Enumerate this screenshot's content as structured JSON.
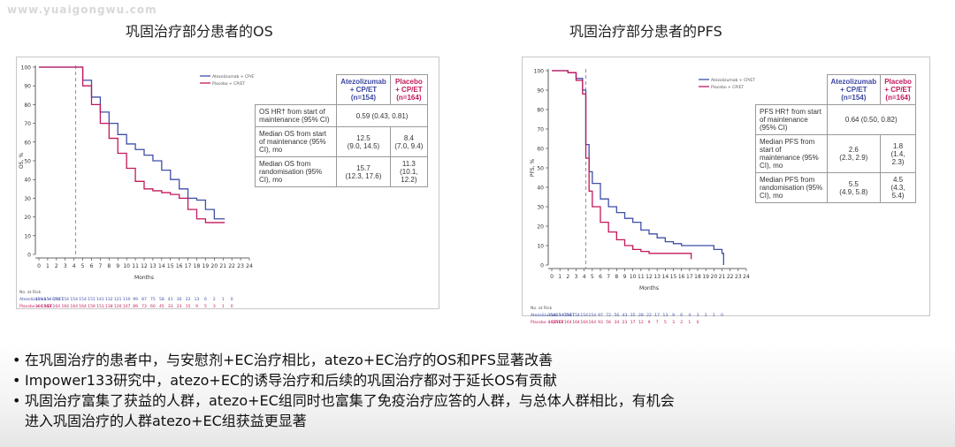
{
  "watermark": "www.yuaigongwu.com",
  "os_panel": {
    "title": "巩固治疗部分患者的OS",
    "table": {
      "col1": [
        "Atezolizumab",
        "+ CP/ET",
        "(n=154)"
      ],
      "col2": [
        "Placebo",
        "+ CP/ET",
        "(n=164)"
      ],
      "hr_label": "OS HR† from start of maintenance (95% CI)",
      "hr_value": "0.59 (0.43, 0.81)",
      "row2_label": "Median OS from start of maintenance (95% CI), mo",
      "row2_v1": [
        "12.5",
        "(9.0, 14.5)"
      ],
      "row2_v2": [
        "8.4",
        "(7.0, 9.4)"
      ],
      "row3_label": "Median OS from randomisation (95% CI), mo",
      "row3_v1": [
        "15.7",
        "(12.3, 17.6)"
      ],
      "row3_v2": [
        "11.3",
        "(10.1, 12.2)"
      ]
    }
  },
  "pfs_panel": {
    "title": "巩固治疗部分患者的PFS",
    "table": {
      "col1": [
        "Atezolizumab",
        "+ CP/ET",
        "(n=154)"
      ],
      "col2": [
        "Placebo",
        "+ CP/ET",
        "(n=164)"
      ],
      "hr_label": "PFS HR† from start of maintenance (95% CI)",
      "hr_value": "0.64 (0.50, 0.82)",
      "row2_label": "Median PFS from start of maintenance (95% CI), mo",
      "row2_v1": [
        "2.6",
        "(2.3, 2.9)"
      ],
      "row2_v2": [
        "1.8",
        "(1.4, 2.3)"
      ],
      "row3_label": "Median PFS from randomisation (95% CI), mo",
      "row3_v1": [
        "5.5",
        "(4.9, 5.8)"
      ],
      "row3_v2": [
        "4.5",
        "(4.3, 5.4)"
      ]
    }
  },
  "chart_data": [
    {
      "type": "line",
      "title": "",
      "xlabel": "Months",
      "ylabel": "OS, %",
      "xlim": [
        0,
        24
      ],
      "ylim": [
        0,
        100
      ],
      "xticks": [
        0,
        1,
        2,
        3,
        4,
        5,
        6,
        7,
        8,
        9,
        10,
        11,
        12,
        13,
        14,
        15,
        16,
        17,
        18,
        19,
        20,
        21,
        22,
        23,
        24
      ],
      "yticks": [
        0,
        10,
        20,
        30,
        40,
        50,
        60,
        70,
        80,
        90,
        100
      ],
      "ref_line_x": 4.2,
      "legend_position": "top-right",
      "series": [
        {
          "name": "Atezolizumab + CP/ET",
          "color": "#3f4fa8",
          "x": [
            0,
            4.2,
            5,
            6,
            7,
            8,
            9,
            10,
            11,
            12,
            13,
            14,
            15,
            16,
            17,
            18,
            19,
            20,
            21.2
          ],
          "y": [
            100,
            100,
            93,
            84,
            76,
            70,
            64,
            59,
            56,
            53,
            50,
            45,
            40,
            35,
            30,
            29,
            24,
            19,
            19
          ]
        },
        {
          "name": "Placebo + CP/ET",
          "color": "#c2185b",
          "x": [
            0,
            4.2,
            5,
            6,
            7,
            8,
            9,
            10,
            11,
            12,
            13,
            14,
            15,
            16,
            17,
            18,
            19,
            20,
            21.2
          ],
          "y": [
            100,
            100,
            90,
            80,
            70,
            62,
            54,
            46,
            39,
            35,
            34,
            33,
            32,
            30,
            24,
            19,
            17,
            17,
            17
          ]
        }
      ],
      "at_risk": {
        "label": "No. at Risk",
        "rows": [
          {
            "label": "Atezolizumab + CP/ET",
            "color": "#3f4fa8",
            "values": [
              "154",
              "154",
              "154",
              "154",
              "154",
              "154",
              "151",
              "141",
              "132",
              "121",
              "110",
              "99",
              "87",
              "75",
              "58",
              "41",
              "30",
              "22",
              "13",
              "6",
              "2",
              "1",
              "0",
              "",
              ""
            ]
          },
          {
            "label": "Placebo + CP/ET",
            "color": "#c2185b",
            "values": [
              "164",
              "164",
              "164",
              "164",
              "164",
              "164",
              "159",
              "151",
              "138",
              "120",
              "107",
              "89",
              "73",
              "60",
              "45",
              "33",
              "23",
              "15",
              "9",
              "5",
              "3",
              "1",
              "0",
              "",
              ""
            ]
          }
        ]
      }
    },
    {
      "type": "line",
      "title": "",
      "xlabel": "Months",
      "ylabel": "PFS, %",
      "xlim": [
        0,
        24
      ],
      "ylim": [
        0,
        100
      ],
      "xticks": [
        0,
        1,
        2,
        3,
        4,
        5,
        6,
        7,
        8,
        9,
        10,
        11,
        12,
        13,
        14,
        15,
        16,
        17,
        18,
        19,
        20,
        21,
        22,
        23,
        24
      ],
      "yticks": [
        0,
        10,
        20,
        30,
        40,
        50,
        60,
        70,
        80,
        90,
        100
      ],
      "ref_line_x": 4.2,
      "legend_position": "top-right",
      "series": [
        {
          "name": "Atezolizumab + CP/ET",
          "color": "#3f4fa8",
          "x": [
            0,
            2,
            3,
            3.8,
            4.2,
            4.6,
            5,
            6,
            7,
            8,
            9,
            10,
            11,
            12,
            13,
            14,
            15,
            16,
            17,
            18,
            19,
            20,
            21,
            21.2
          ],
          "y": [
            100,
            99,
            96,
            90,
            62,
            48,
            42,
            34,
            30,
            27,
            24,
            22,
            18,
            16,
            14,
            12,
            11,
            10,
            10,
            10,
            10,
            8,
            6,
            0
          ]
        },
        {
          "name": "Placebo + CP/ET",
          "color": "#c2185b",
          "x": [
            0,
            2,
            3,
            3.8,
            4.2,
            4.6,
            5,
            6,
            7,
            8,
            9,
            10,
            11,
            12,
            13,
            14,
            15,
            16,
            17,
            17.2
          ],
          "y": [
            100,
            99,
            95,
            88,
            55,
            38,
            30,
            22,
            17,
            13,
            10,
            8,
            7,
            6,
            6,
            6,
            6,
            6,
            6,
            3
          ]
        }
      ],
      "at_risk": {
        "label": "No. at Risk",
        "rows": [
          {
            "label": "Atezolizumab + CP/ET",
            "color": "#3f4fa8",
            "values": [
              "154",
              "154",
              "154",
              "154",
              "154",
              "154",
              "97",
              "72",
              "56",
              "43",
              "35",
              "28",
              "22",
              "17",
              "13",
              "9",
              "6",
              "4",
              "3",
              "2",
              "1",
              "0",
              "",
              "",
              ""
            ]
          },
          {
            "label": "Placebo + CP/ET",
            "color": "#c2185b",
            "values": [
              "164",
              "164",
              "164",
              "164",
              "164",
              "164",
              "93",
              "56",
              "34",
              "23",
              "17",
              "12",
              "9",
              "7",
              "5",
              "3",
              "2",
              "1",
              "0",
              "",
              "",
              "",
              "",
              "",
              ""
            ]
          }
        ]
      }
    }
  ],
  "bullets": [
    {
      "dot": "•",
      "text": "在巩固治疗的患者中，与安慰剂+EC治疗相比，atezo+EC治疗的OS和PFS显著改善",
      "cont": ""
    },
    {
      "dot": "•",
      "text": "Impower133研究中，atezo+EC的诱导治疗和后续的巩固治疗都对于延长OS有贡献",
      "cont": ""
    },
    {
      "dot": "•",
      "text": "巩固治疗富集了获益的人群，atezo+EC组同时也富集了免疫治疗应答的人群，与总体人群相比，有机会",
      "cont": "进入巩固治疗的人群atezo+EC组获益更显著"
    }
  ]
}
